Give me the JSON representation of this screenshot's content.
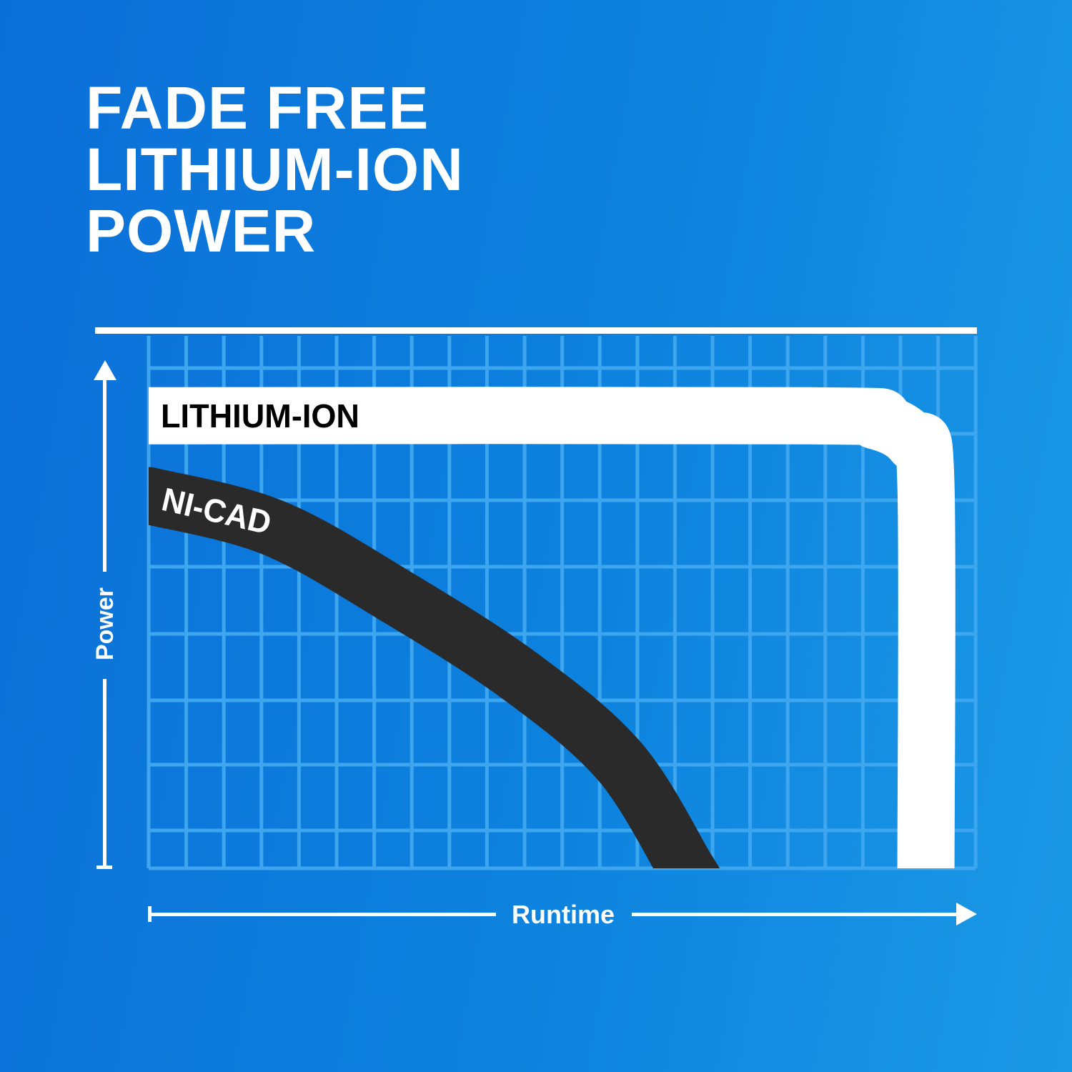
{
  "headline": {
    "lines": [
      "FADE FREE",
      "LITHIUM-ION",
      "POWER"
    ]
  },
  "colors": {
    "background": "#0d82de",
    "grid": "#3ea6ef",
    "lithium_ion": "#ffffff",
    "ni_cad": "#2a2a2a",
    "text": "#ffffff"
  },
  "chart_data": {
    "type": "line",
    "title": "",
    "xlabel": "Runtime",
    "ylabel": "Power",
    "xlim": [
      0,
      100
    ],
    "ylim": [
      0,
      100
    ],
    "grid": true,
    "legend": "inline labels",
    "series": [
      {
        "name": "LITHIUM-ION",
        "color": "#ffffff",
        "points": [
          [
            0,
            85
          ],
          [
            80,
            85
          ],
          [
            88,
            84
          ],
          [
            92.5,
            80
          ],
          [
            94,
            72
          ],
          [
            94,
            0
          ]
        ]
      },
      {
        "name": "NI-CAD",
        "color": "#2a2a2a",
        "points": [
          [
            0,
            70
          ],
          [
            15,
            64
          ],
          [
            30,
            51
          ],
          [
            45,
            36
          ],
          [
            57,
            20
          ],
          [
            65,
            0
          ]
        ]
      }
    ]
  }
}
